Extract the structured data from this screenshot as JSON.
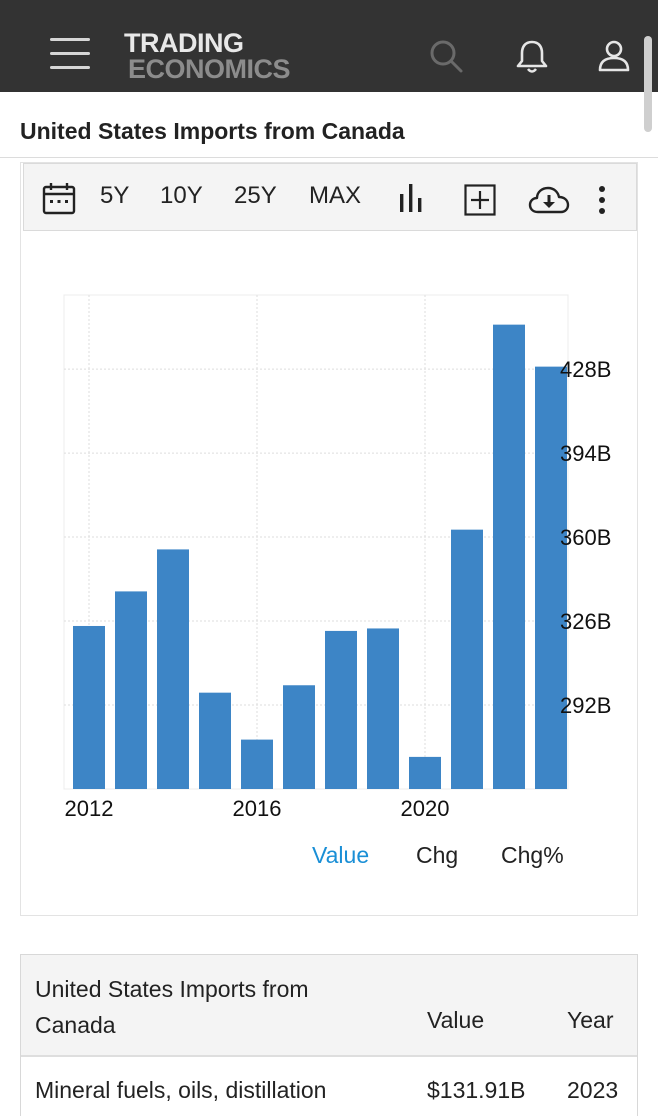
{
  "header": {
    "logo_line1": "TRADING",
    "logo_line2": "ECONOMICS",
    "icons": [
      "hamburger-menu-icon",
      "search-icon",
      "bell-icon",
      "user-icon"
    ]
  },
  "page": {
    "title": "United States Imports from Canada"
  },
  "toolbar": {
    "ranges": [
      "5Y",
      "10Y",
      "25Y",
      "MAX"
    ],
    "icons": [
      "calendar-icon",
      "bar-chart-icon",
      "add-icon",
      "download-icon",
      "more-icon"
    ]
  },
  "view_tabs": {
    "value": "Value",
    "chg": "Chg",
    "chg_pct": "Chg%",
    "active": "Value"
  },
  "chart_data": {
    "type": "bar",
    "x": [
      2012,
      2013,
      2014,
      2015,
      2016,
      2017,
      2018,
      2019,
      2020,
      2021,
      2022,
      2023
    ],
    "values": [
      324,
      338,
      355,
      297,
      278,
      300,
      322,
      323,
      271,
      363,
      446,
      429
    ],
    "unit": "B",
    "x_tick_labels": [
      "2012",
      "2016",
      "2020"
    ],
    "y_tick_values": [
      292,
      326,
      360,
      394,
      428
    ],
    "y_tick_labels": [
      "292B",
      "326B",
      "360B",
      "394B",
      "428B"
    ],
    "ylim": [
      258,
      458
    ],
    "y_axis_position": "right",
    "grid": true,
    "bar_color": "#3d85c6"
  },
  "table": {
    "header_name": "United States Imports from Canada",
    "header_value": "Value",
    "header_year": "Year",
    "rows": [
      {
        "name": "Mineral fuels, oils, distillation",
        "value": "$131.91B",
        "year": "2023"
      }
    ]
  }
}
